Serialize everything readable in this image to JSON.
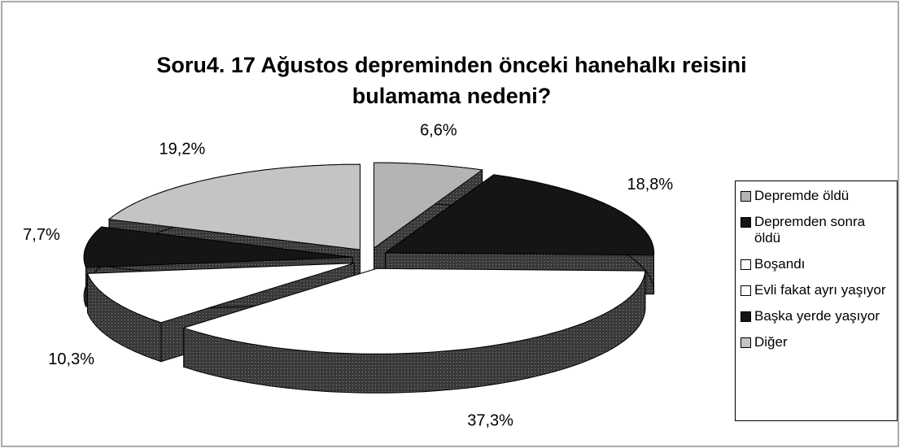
{
  "chart_data": {
    "type": "pie3d",
    "title": "Soru4. 17 Ağustos depreminden önceki hanehalkı reisini bulamama nedeni?",
    "categories": [
      "Depremde öldü",
      "Depremden sonra öldü",
      "Boşandı",
      "Evli fakat ayrı yaşıyor",
      "Başka yerde yaşıyor",
      "Diğer"
    ],
    "values": [
      6.6,
      18.8,
      37.3,
      10.3,
      7.7,
      19.2
    ],
    "value_labels": [
      "6,6%",
      "18,8%",
      "37,3%",
      "10,3%",
      "7,7%",
      "19,2%"
    ],
    "colors": [
      "#b4b4b4",
      "#151515",
      "#ffffff",
      "#ffffff",
      "#151515",
      "#c4c4c4"
    ],
    "legend": "right"
  }
}
